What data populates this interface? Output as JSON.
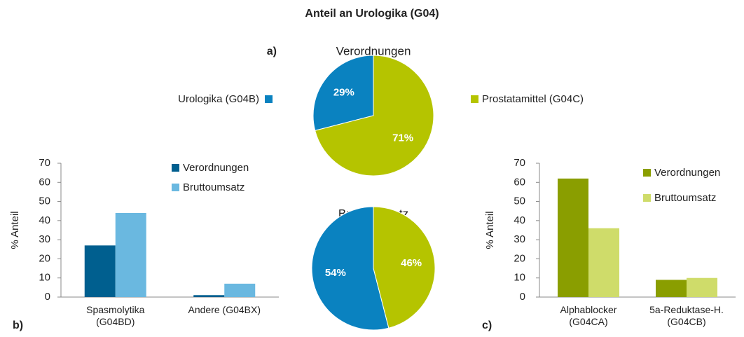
{
  "title": "Anteil an Urologika (G04)",
  "pie_legend": [
    {
      "name": "Urologika (G04B)",
      "color": "#0a82c0"
    },
    {
      "name": "Prostatamittel (G04C)",
      "color": "#b5c400"
    }
  ],
  "chart_data": [
    {
      "type": "pie",
      "label": "a)",
      "title": "Verordnungen",
      "values": [
        29,
        71
      ],
      "value_labels": [
        "29%",
        "71%"
      ],
      "counterclockwise": true
    },
    {
      "type": "pie",
      "title": "Bruttoumsatz",
      "values": [
        54,
        46
      ],
      "value_labels": [
        "54%",
        "46%"
      ],
      "counterclockwise": true
    },
    {
      "type": "bar",
      "label": "b)",
      "ylabel": "% Anteil",
      "categories": [
        "Spasmolytika (G04BD)",
        "Andere (G04BX)"
      ],
      "series": [
        {
          "name": "Verordnungen",
          "color": "#005f8f",
          "values": [
            27,
            1
          ]
        },
        {
          "name": "Bruttoumsatz",
          "color": "#6ab8e0",
          "values": [
            44,
            7
          ]
        }
      ],
      "ylim": [
        0,
        70
      ],
      "yticks": [
        0,
        10,
        20,
        30,
        40,
        50,
        60,
        70
      ]
    },
    {
      "type": "bar",
      "label": "c)",
      "ylabel": "% Anteil",
      "categories": [
        "Alphablocker (G04CA)",
        "5a-Reduktase-H. (G04CB)"
      ],
      "series": [
        {
          "name": "Verordnungen",
          "color": "#8a9e00",
          "values": [
            62,
            9
          ]
        },
        {
          "name": "Bruttoumsatz",
          "color": "#cfdc6a",
          "values": [
            36,
            10
          ]
        }
      ],
      "ylim": [
        0,
        70
      ],
      "yticks": [
        0,
        10,
        20,
        30,
        40,
        50,
        60,
        70
      ]
    }
  ]
}
